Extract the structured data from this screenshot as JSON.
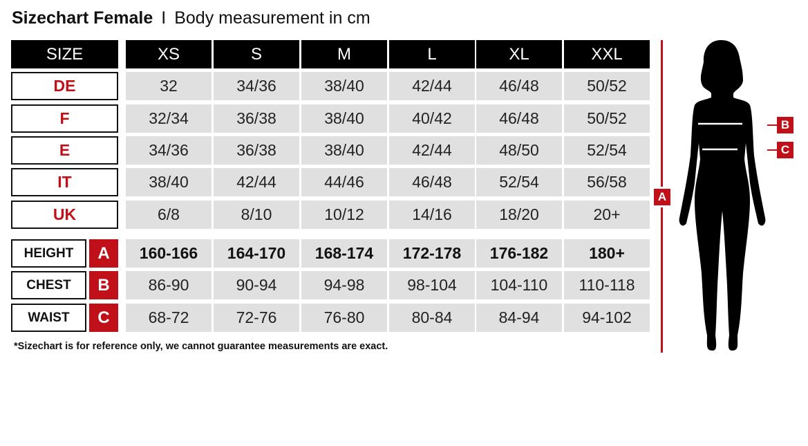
{
  "title": {
    "main": "Sizechart Female",
    "separator": "I",
    "sub": "Body measurement in cm"
  },
  "header": {
    "label": "SIZE",
    "sizes": [
      "XS",
      "S",
      "M",
      "L",
      "XL",
      "XXL"
    ]
  },
  "conversion_rows": [
    {
      "label": "DE",
      "values": [
        "32",
        "34/36",
        "38/40",
        "42/44",
        "46/48",
        "50/52"
      ]
    },
    {
      "label": "F",
      "values": [
        "32/34",
        "36/38",
        "38/40",
        "40/42",
        "46/48",
        "50/52"
      ]
    },
    {
      "label": "E",
      "values": [
        "34/36",
        "36/38",
        "38/40",
        "42/44",
        "48/50",
        "52/54"
      ]
    },
    {
      "label": "IT",
      "values": [
        "38/40",
        "42/44",
        "44/46",
        "46/48",
        "52/54",
        "56/58"
      ]
    },
    {
      "label": "UK",
      "values": [
        "6/8",
        "8/10",
        "10/12",
        "14/16",
        "18/20",
        "20+"
      ]
    }
  ],
  "measurement_rows": [
    {
      "label": "HEIGHT",
      "key": "A",
      "values": [
        "160-166",
        "164-170",
        "168-174",
        "172-178",
        "176-182",
        "180+"
      ]
    },
    {
      "label": "CHEST",
      "key": "B",
      "values": [
        "86-90",
        "90-94",
        "94-98",
        "98-104",
        "104-110",
        "110-118"
      ]
    },
    {
      "label": "WAIST",
      "key": "C",
      "values": [
        "68-72",
        "72-76",
        "76-80",
        "80-84",
        "84-94",
        "94-102"
      ]
    }
  ],
  "note": "*Sizechart is for reference only, we cannot guarantee measurements are exact.",
  "figure": {
    "height_key": "A",
    "chest_key": "B",
    "waist_key": "C"
  },
  "colors": {
    "accent": "#c0111a",
    "header_bg": "#000000",
    "cell_bg": "#e0e0e0"
  }
}
